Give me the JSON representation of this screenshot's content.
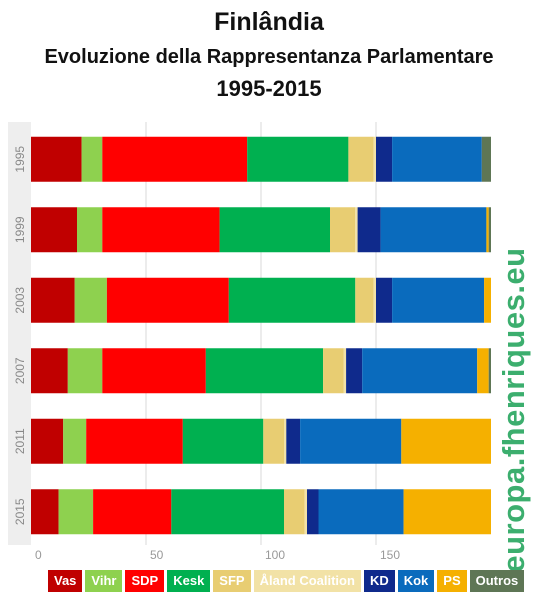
{
  "title": "Finlândia",
  "subtitle": "Evoluzione della Rappresentanza Parlamentare",
  "period": "1995-2015",
  "watermark": "europa.fhenriques.eu",
  "chart_data": {
    "type": "bar",
    "orientation": "horizontal",
    "stacked": true,
    "categories": [
      "1995",
      "1999",
      "2003",
      "2007",
      "2011",
      "2015"
    ],
    "xlim": [
      0,
      200
    ],
    "xticks": [
      "0",
      "50",
      "100",
      "150"
    ],
    "grid": true,
    "legend_position": "bottom",
    "series": [
      {
        "name": "Vas",
        "color": "#c00000",
        "values": [
          22,
          20,
          19,
          16,
          14,
          12
        ]
      },
      {
        "name": "Vihr",
        "color": "#8ed14f",
        "values": [
          9,
          11,
          14,
          15,
          10,
          15
        ]
      },
      {
        "name": "SDP",
        "color": "#ff0000",
        "values": [
          63,
          51,
          53,
          45,
          42,
          34
        ]
      },
      {
        "name": "Kesk",
        "color": "#00b050",
        "values": [
          44,
          48,
          55,
          51,
          35,
          49
        ]
      },
      {
        "name": "SFP",
        "color": "#e8cd72",
        "values": [
          11,
          11,
          8,
          9,
          9,
          9
        ]
      },
      {
        "name": "Åland Coalition",
        "color": "#f2e2a6",
        "values": [
          1,
          1,
          1,
          1,
          1,
          1
        ]
      },
      {
        "name": "KD",
        "color": "#0f2a8c",
        "values": [
          7,
          10,
          7,
          7,
          6,
          5
        ]
      },
      {
        "name": "Kok",
        "color": "#0a6bbd",
        "values": [
          39,
          46,
          40,
          50,
          44,
          37
        ]
      },
      {
        "name": "PS",
        "color": "#f5b000",
        "values": [
          0,
          1,
          3,
          5,
          39,
          38
        ]
      },
      {
        "name": "Outros",
        "color": "#5e7655",
        "values": [
          4,
          1,
          0,
          1,
          0,
          0
        ]
      }
    ]
  }
}
